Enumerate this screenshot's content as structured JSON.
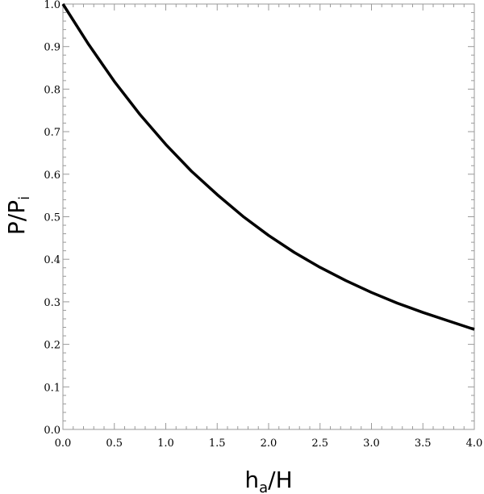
{
  "chart_data": {
    "type": "line",
    "title": "",
    "xlabel": {
      "main": "h",
      "sub": "a",
      "rest": "/H"
    },
    "ylabel": {
      "main": "P/P",
      "sub": "i"
    },
    "xlim": [
      0,
      4
    ],
    "ylim": [
      0,
      1
    ],
    "x_ticks": [
      "0.0",
      "0.5",
      "1.0",
      "1.5",
      "2.0",
      "2.5",
      "3.0",
      "3.5",
      "4.0"
    ],
    "y_ticks": [
      "0.0",
      "0.1",
      "0.2",
      "0.3",
      "0.4",
      "0.5",
      "0.6",
      "0.7",
      "0.8",
      "0.9",
      "1.0"
    ],
    "grid": false,
    "series": [
      {
        "x": [
          0,
          0.25,
          0.5,
          0.75,
          1.0,
          1.25,
          1.5,
          1.75,
          2.0,
          2.25,
          2.5,
          2.75,
          3.0,
          3.25,
          3.5,
          3.75,
          4.0
        ],
        "y": [
          1.0,
          0.905,
          0.818,
          0.74,
          0.67,
          0.607,
          0.552,
          0.501,
          0.456,
          0.416,
          0.381,
          0.35,
          0.322,
          0.297,
          0.275,
          0.255,
          0.235
        ],
        "color": "#000000"
      }
    ]
  }
}
